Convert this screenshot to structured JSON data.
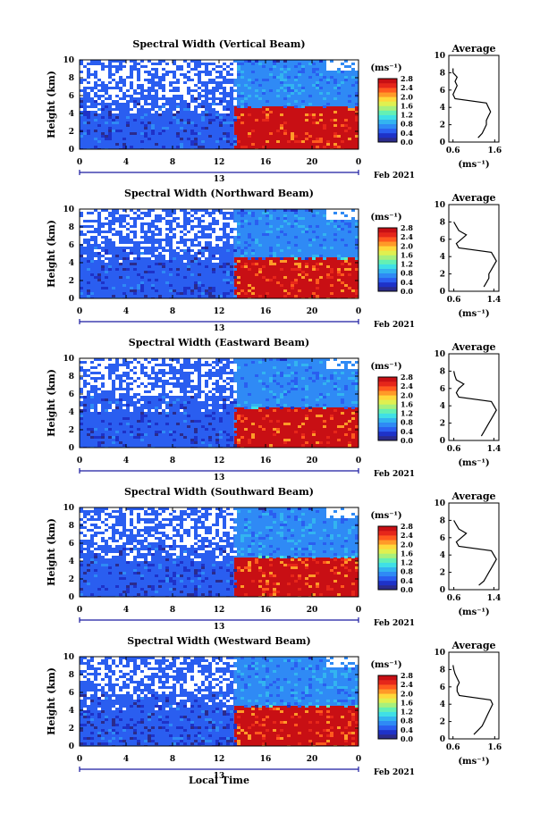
{
  "figure": {
    "xlabel": "Local Time",
    "date_label": "Feb 2021",
    "day_label": "13",
    "colorbar_unit": "(ms⁻¹)",
    "colorbar_ticks": [
      "0.0",
      "0.4",
      "0.8",
      "1.2",
      "1.6",
      "2.0",
      "2.4",
      "2.8"
    ],
    "avg_title": "Average",
    "avg_xunit": "(ms⁻¹)"
  },
  "colors": {
    "colormap": [
      "#2b2b8c",
      "#1e32c8",
      "#2a5ef0",
      "#2f8af5",
      "#33b4f0",
      "#3fe0e6",
      "#64f0b4",
      "#a8f07c",
      "#e0f050",
      "#ffd83a",
      "#ff9a28",
      "#ff5a1e",
      "#e6261a",
      "#c80f14"
    ],
    "no_data": "#ffffff"
  },
  "chart_data": [
    {
      "type": "heatmap",
      "title": "Spectral Width (Vertical Beam)",
      "ylabel": "Height (km)",
      "x_ticks": [
        "0",
        "4",
        "8",
        "12",
        "16",
        "20",
        "0"
      ],
      "y_ticks": [
        "0",
        "2",
        "4",
        "6",
        "8",
        "10"
      ],
      "xlim": [
        0,
        24
      ],
      "ylim": [
        0,
        10
      ],
      "clim": [
        0,
        2.8
      ],
      "layers": [
        {
          "x": [
            0,
            13.3
          ],
          "y": [
            0,
            10
          ],
          "value": 0.4
        },
        {
          "x": [
            13.3,
            24
          ],
          "y": [
            0,
            4.8
          ],
          "value": 2.6
        },
        {
          "x": [
            13.3,
            24
          ],
          "y": [
            4.8,
            10
          ],
          "value": 0.7
        }
      ],
      "average_profile": {
        "title": "Average",
        "xlabel": "(ms⁻¹)",
        "x_ticks": [
          "0.6",
          "1.6"
        ],
        "xlim": [
          0.5,
          1.7
        ],
        "y_ticks": [
          "0",
          "2",
          "4",
          "6",
          "8",
          "10"
        ],
        "ylim": [
          0,
          10
        ],
        "height": [
          0.5,
          1,
          1.5,
          2,
          2.5,
          3,
          3.5,
          4,
          4.5,
          5,
          5.5,
          6,
          6.5,
          7,
          7.5,
          8,
          8.5
        ],
        "value": [
          1.2,
          1.3,
          1.35,
          1.4,
          1.4,
          1.45,
          1.5,
          1.45,
          1.4,
          0.65,
          0.6,
          0.65,
          0.7,
          0.65,
          0.7,
          0.6,
          0.6
        ]
      }
    },
    {
      "type": "heatmap",
      "title": "Spectral Width (Northward Beam)",
      "ylabel": "Height (km)",
      "x_ticks": [
        "0",
        "4",
        "8",
        "12",
        "16",
        "20",
        "0"
      ],
      "y_ticks": [
        "0",
        "2",
        "4",
        "6",
        "8",
        "10"
      ],
      "xlim": [
        0,
        24
      ],
      "ylim": [
        0,
        10
      ],
      "clim": [
        0,
        2.8
      ],
      "layers": [
        {
          "x": [
            0,
            13.3
          ],
          "y": [
            0,
            10
          ],
          "value": 0.4
        },
        {
          "x": [
            13.3,
            24
          ],
          "y": [
            0,
            4.6
          ],
          "value": 2.6
        },
        {
          "x": [
            13.3,
            24
          ],
          "y": [
            4.6,
            10
          ],
          "value": 0.7
        }
      ],
      "average_profile": {
        "title": "Average",
        "xlabel": "(ms⁻¹)",
        "x_ticks": [
          "0.6",
          "1.4"
        ],
        "xlim": [
          0.5,
          1.5
        ],
        "height": [
          0.5,
          1,
          1.5,
          2,
          2.5,
          3,
          3.5,
          4,
          4.5,
          5,
          5.5,
          6,
          6.5,
          7,
          7.5,
          8
        ],
        "value": [
          1.2,
          1.25,
          1.3,
          1.3,
          1.35,
          1.4,
          1.45,
          1.4,
          1.35,
          0.7,
          0.65,
          0.75,
          0.85,
          0.7,
          0.65,
          0.6
        ]
      }
    },
    {
      "type": "heatmap",
      "title": "Spectral Width (Eastward Beam)",
      "ylabel": "Height (km)",
      "x_ticks": [
        "0",
        "4",
        "8",
        "12",
        "16",
        "20",
        "0"
      ],
      "y_ticks": [
        "0",
        "2",
        "4",
        "6",
        "8",
        "10"
      ],
      "xlim": [
        0,
        24
      ],
      "ylim": [
        0,
        10
      ],
      "clim": [
        0,
        2.8
      ],
      "layers": [
        {
          "x": [
            0,
            13.3
          ],
          "y": [
            0,
            10
          ],
          "value": 0.4
        },
        {
          "x": [
            13.3,
            24
          ],
          "y": [
            0,
            4.5
          ],
          "value": 2.6
        },
        {
          "x": [
            13.3,
            24
          ],
          "y": [
            4.5,
            10
          ],
          "value": 0.7
        }
      ],
      "average_profile": {
        "title": "Average",
        "xlabel": "(ms⁻¹)",
        "x_ticks": [
          "0.6",
          "1.4"
        ],
        "xlim": [
          0.5,
          1.5
        ],
        "height": [
          0.5,
          1,
          1.5,
          2,
          2.5,
          3,
          3.5,
          4,
          4.5,
          5,
          5.5,
          6,
          6.5,
          7,
          7.5,
          8
        ],
        "value": [
          1.15,
          1.2,
          1.25,
          1.3,
          1.35,
          1.4,
          1.45,
          1.4,
          1.35,
          0.7,
          0.65,
          0.7,
          0.8,
          0.65,
          0.62,
          0.6
        ]
      }
    },
    {
      "type": "heatmap",
      "title": "Spectral Width (Southward Beam)",
      "ylabel": "Height (km)",
      "x_ticks": [
        "0",
        "4",
        "8",
        "12",
        "16",
        "20",
        "0"
      ],
      "y_ticks": [
        "0",
        "2",
        "4",
        "6",
        "8",
        "10"
      ],
      "xlim": [
        0,
        24
      ],
      "ylim": [
        0,
        10
      ],
      "clim": [
        0,
        2.8
      ],
      "layers": [
        {
          "x": [
            0,
            13.3
          ],
          "y": [
            0,
            10
          ],
          "value": 0.4
        },
        {
          "x": [
            13.3,
            24
          ],
          "y": [
            0,
            4.4
          ],
          "value": 2.6
        },
        {
          "x": [
            13.3,
            24
          ],
          "y": [
            4.4,
            10
          ],
          "value": 0.7
        }
      ],
      "average_profile": {
        "title": "Average",
        "xlabel": "(ms⁻¹)",
        "x_ticks": [
          "0.6",
          "1.4"
        ],
        "xlim": [
          0.5,
          1.5
        ],
        "height": [
          0.5,
          1,
          1.5,
          2,
          2.5,
          3,
          3.5,
          4,
          4.5,
          5,
          5.5,
          6,
          6.5,
          7,
          7.5,
          8
        ],
        "value": [
          1.1,
          1.2,
          1.25,
          1.3,
          1.35,
          1.4,
          1.45,
          1.4,
          1.35,
          0.7,
          0.65,
          0.75,
          0.85,
          0.7,
          0.65,
          0.6
        ]
      }
    },
    {
      "type": "heatmap",
      "title": "Spectral Width (Westward Beam)",
      "ylabel": "Height (km)",
      "x_ticks": [
        "0",
        "4",
        "8",
        "12",
        "16",
        "20",
        "0"
      ],
      "y_ticks": [
        "0",
        "2",
        "4",
        "6",
        "8",
        "10"
      ],
      "xlim": [
        0,
        24
      ],
      "ylim": [
        0,
        10
      ],
      "clim": [
        0,
        2.8
      ],
      "layers": [
        {
          "x": [
            0,
            13.3
          ],
          "y": [
            0,
            10
          ],
          "value": 0.4
        },
        {
          "x": [
            13.3,
            24
          ],
          "y": [
            0,
            4.5
          ],
          "value": 2.6
        },
        {
          "x": [
            13.3,
            24
          ],
          "y": [
            4.5,
            10
          ],
          "value": 0.7
        }
      ],
      "average_profile": {
        "title": "Average",
        "xlabel": "(ms⁻¹)",
        "x_ticks": [
          "0.6",
          "1.6"
        ],
        "xlim": [
          0.5,
          1.7
        ],
        "height": [
          0.5,
          1,
          1.5,
          2,
          2.5,
          3,
          3.5,
          4,
          4.5,
          5,
          5.5,
          6,
          6.5,
          7,
          7.5,
          8,
          8.5
        ],
        "value": [
          1.1,
          1.2,
          1.3,
          1.35,
          1.4,
          1.45,
          1.5,
          1.55,
          1.5,
          0.75,
          0.7,
          0.7,
          0.75,
          0.7,
          0.65,
          0.62,
          0.6
        ]
      }
    }
  ]
}
